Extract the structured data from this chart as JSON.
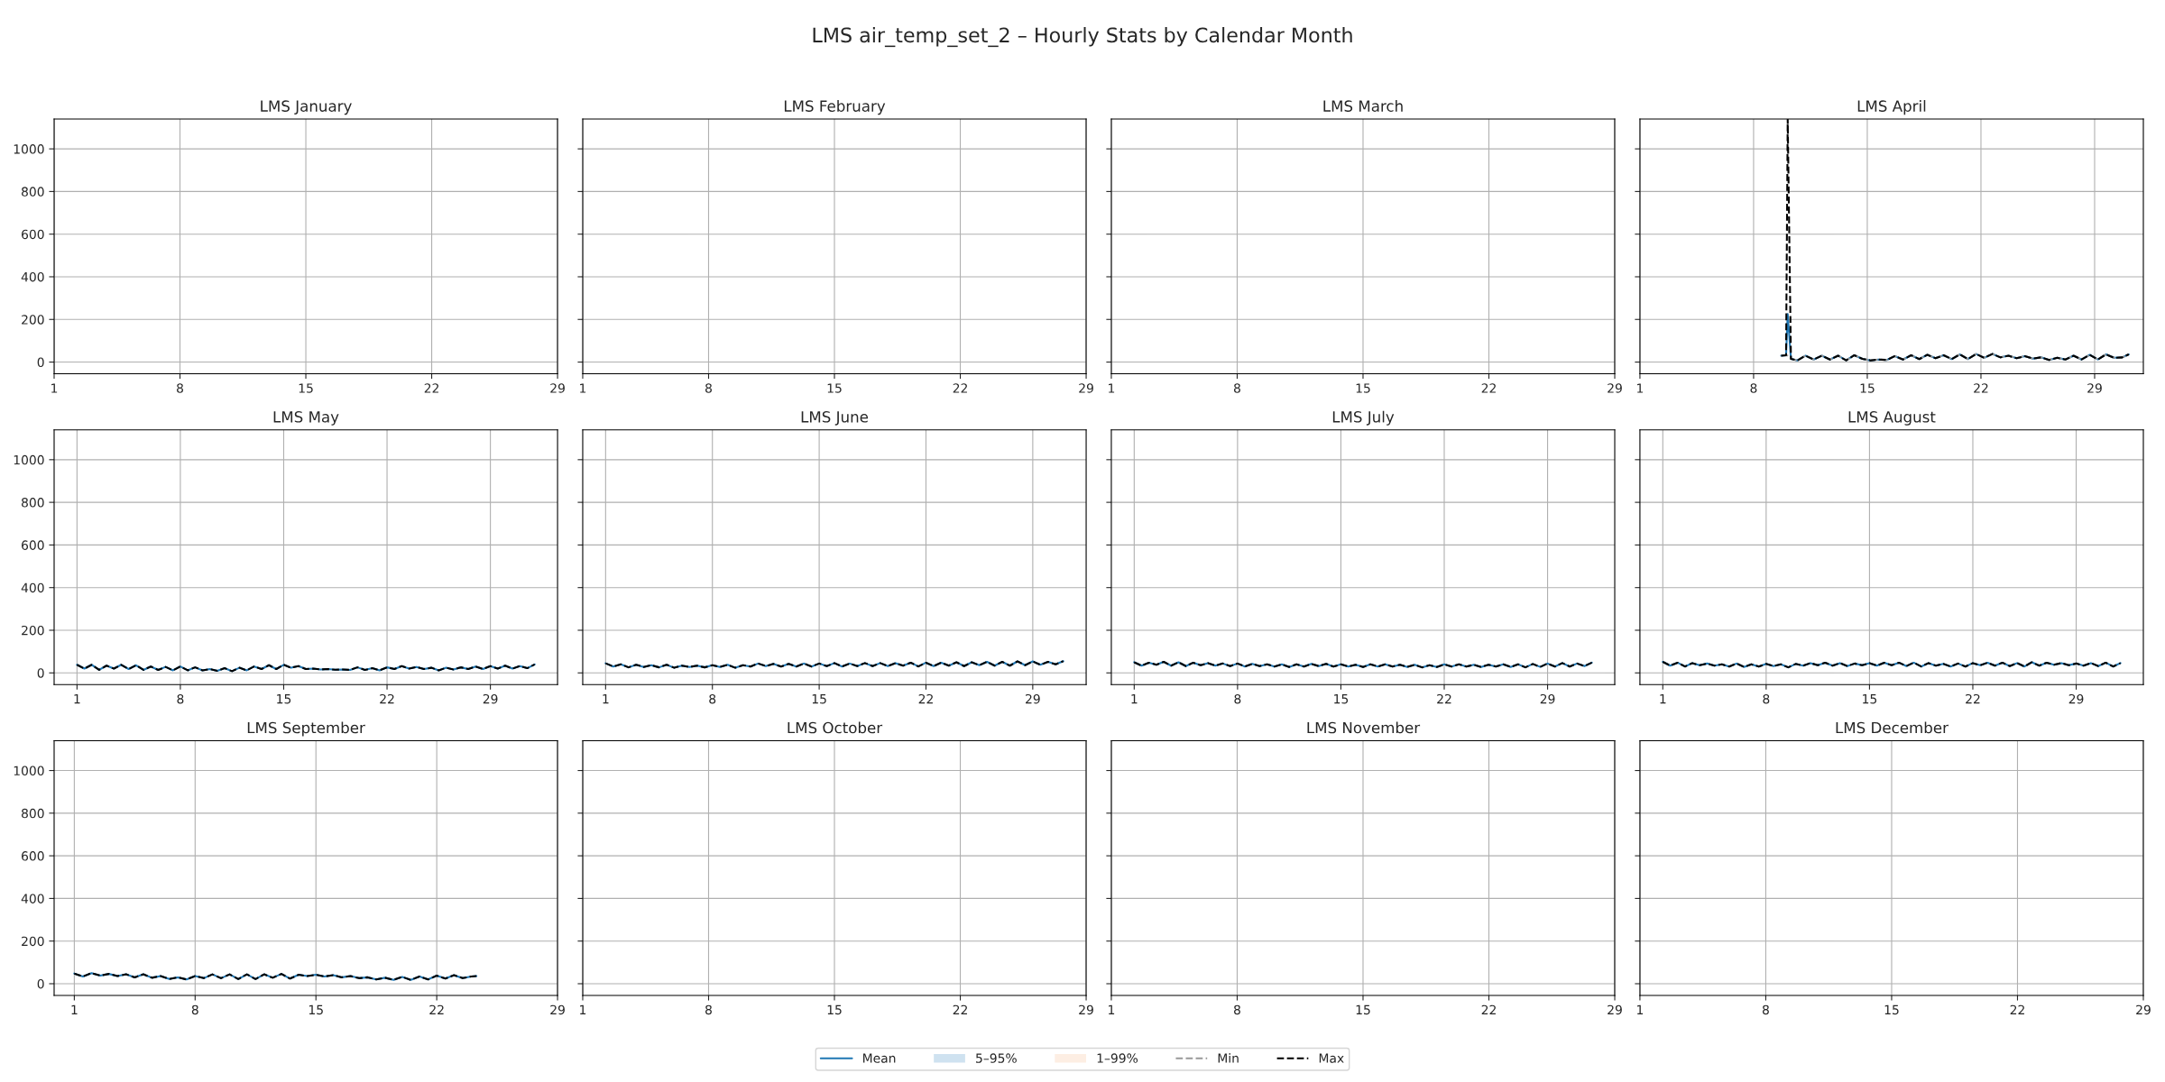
{
  "chart_data": [
    {
      "type": "line",
      "title": "LMS January",
      "annotations": [
        "LMS air_temp_set_2 – Hourly Stats by Calendar Month"
      ],
      "xlim": [
        1,
        29
      ],
      "xticks": [
        1,
        8,
        15,
        22,
        29
      ],
      "ylim": [
        -55,
        1140
      ],
      "yticks": [
        0,
        200,
        400,
        600,
        800,
        1000
      ],
      "grid": true
    },
    {
      "type": "line",
      "title": "LMS February",
      "xlim": [
        1,
        29
      ],
      "xticks": [
        1,
        8,
        15,
        22,
        29
      ],
      "ylim": [
        -55,
        1140
      ],
      "yticks": [
        0,
        200,
        400,
        600,
        800,
        1000
      ],
      "grid": true,
      "tick_labels": "x"
    },
    {
      "type": "line",
      "title": "LMS March",
      "xlim": [
        1,
        29
      ],
      "xticks": [
        1,
        8,
        15,
        22,
        29
      ],
      "ylim": [
        -55,
        1140
      ],
      "yticks": [
        0,
        200,
        400,
        600,
        800,
        1000
      ],
      "grid": true,
      "tick_labels": "x"
    },
    {
      "type": "line",
      "title": "LMS April",
      "xlim": [
        1,
        32
      ],
      "xticks": [
        1,
        8,
        15,
        22,
        29
      ],
      "ylim": [
        -55,
        1140
      ],
      "yticks": [
        0,
        200,
        400,
        600,
        800,
        1000
      ],
      "grid": true,
      "tick_labels": "x",
      "legend": "bottom",
      "x": [
        9.7,
        10.0,
        10.1,
        10.3,
        10.7,
        11.2,
        11.7,
        12.2,
        12.7,
        13.2,
        13.7,
        14.2,
        14.7,
        15.2,
        15.7,
        16.2,
        16.7,
        17.2,
        17.7,
        18.2,
        18.7,
        19.2,
        19.7,
        20.2,
        20.7,
        21.2,
        21.7,
        22.2,
        22.7,
        23.2,
        23.7,
        24.2,
        24.7,
        25.2,
        25.7,
        26.2,
        26.7,
        27.2,
        27.7,
        28.2,
        28.7,
        29.2,
        29.7,
        30.2,
        30.7,
        31.1
      ],
      "series": [
        {
          "name": "Mean",
          "type": "line",
          "color": "#1f77b4",
          "line_style": "solid",
          "values": [
            30,
            32,
            225,
            15,
            8,
            30,
            12,
            30,
            12,
            30,
            8,
            32,
            15,
            8,
            12,
            10,
            28,
            12,
            32,
            14,
            34,
            18,
            32,
            14,
            36,
            14,
            38,
            20,
            38,
            22,
            30,
            18,
            28,
            16,
            22,
            10,
            20,
            12,
            30,
            12,
            34,
            12,
            36,
            20,
            22,
            36
          ]
        },
        {
          "name": "5–95%",
          "type": "area",
          "color": "#cfe2f0",
          "values": [
            null,
            null,
            null,
            null,
            null,
            null,
            null,
            null,
            null,
            null,
            null,
            null,
            null,
            null,
            null,
            null,
            null,
            null,
            null,
            null,
            null,
            null,
            null,
            null,
            null,
            null,
            null,
            null,
            null,
            null,
            null,
            null,
            null,
            null,
            null,
            null,
            null,
            null,
            null,
            null,
            null,
            null,
            null,
            null,
            null,
            null
          ]
        },
        {
          "name": "1–99%",
          "type": "area",
          "color": "#fdeee3",
          "values": [
            null,
            null,
            null,
            null,
            null,
            null,
            null,
            null,
            null,
            null,
            null,
            null,
            null,
            null,
            null,
            null,
            null,
            null,
            null,
            null,
            null,
            null,
            null,
            null,
            null,
            null,
            null,
            null,
            null,
            null,
            null,
            null,
            null,
            null,
            null,
            null,
            null,
            null,
            null,
            null,
            null,
            null,
            null,
            null,
            null,
            null
          ]
        },
        {
          "name": "Min",
          "type": "line",
          "color": "#999999",
          "line_style": "dashed",
          "values": [
            30,
            32,
            30,
            15,
            8,
            30,
            12,
            30,
            12,
            30,
            8,
            32,
            15,
            8,
            12,
            10,
            28,
            12,
            32,
            14,
            34,
            18,
            32,
            14,
            36,
            14,
            38,
            20,
            38,
            22,
            30,
            18,
            28,
            16,
            22,
            10,
            20,
            12,
            30,
            12,
            34,
            12,
            36,
            20,
            22,
            36
          ]
        },
        {
          "name": "Max",
          "type": "line",
          "color": "#000000",
          "line_style": "dashed",
          "values": [
            30,
            32,
            1140,
            15,
            8,
            30,
            12,
            30,
            12,
            30,
            8,
            32,
            15,
            8,
            12,
            10,
            28,
            12,
            32,
            14,
            34,
            18,
            32,
            14,
            36,
            14,
            38,
            20,
            38,
            22,
            30,
            18,
            28,
            16,
            22,
            10,
            20,
            12,
            30,
            12,
            34,
            12,
            36,
            20,
            22,
            36
          ]
        }
      ]
    },
    {
      "type": "line",
      "title": "LMS May",
      "xlim": [
        -0.55,
        33.55
      ],
      "xticks": [
        1,
        8,
        15,
        22,
        29
      ],
      "ylim": [
        -55,
        1140
      ],
      "yticks": [
        0,
        200,
        400,
        600,
        800,
        1000
      ],
      "grid": true,
      "x": [
        1,
        1.5,
        2,
        2.5,
        3,
        3.5,
        4,
        4.5,
        5,
        5.5,
        6,
        6.5,
        7,
        7.5,
        8,
        8.5,
        9,
        9.5,
        10,
        10.5,
        11,
        11.5,
        12,
        12.5,
        13,
        13.5,
        14,
        14.5,
        15,
        15.5,
        16,
        16.5,
        17,
        17.5,
        18,
        18.5,
        19,
        19.5,
        20,
        20.5,
        21,
        21.5,
        22,
        22.5,
        23,
        23.5,
        24,
        24.5,
        25,
        25.5,
        26,
        26.5,
        27,
        27.5,
        28,
        28.5,
        29,
        29.5,
        30,
        30.5,
        31,
        31.5,
        32
      ],
      "series": [
        {
          "type": "line",
          "color": "#1f77b4",
          "line_style": "solid",
          "values": [
            38,
            20,
            38,
            14,
            34,
            20,
            38,
            18,
            36,
            14,
            30,
            14,
            28,
            12,
            30,
            12,
            26,
            12,
            18,
            10,
            22,
            8,
            24,
            12,
            30,
            18,
            36,
            18,
            38,
            24,
            32,
            18,
            20,
            16,
            18,
            15,
            16,
            14,
            26,
            14,
            22,
            12,
            26,
            18,
            32,
            20,
            28,
            18,
            24,
            12,
            24,
            16,
            26,
            18,
            30,
            18,
            32,
            20,
            34,
            20,
            32,
            22,
            40
          ]
        },
        {
          "type": "line",
          "color": "#000000",
          "line_style": "dashed",
          "values": [
            38,
            20,
            38,
            14,
            34,
            20,
            38,
            18,
            36,
            14,
            30,
            14,
            28,
            12,
            30,
            12,
            26,
            12,
            18,
            10,
            22,
            8,
            24,
            12,
            30,
            18,
            36,
            18,
            38,
            24,
            32,
            18,
            20,
            16,
            18,
            15,
            16,
            14,
            26,
            14,
            22,
            12,
            26,
            18,
            32,
            20,
            28,
            18,
            24,
            12,
            24,
            16,
            26,
            18,
            30,
            18,
            32,
            20,
            34,
            20,
            32,
            22,
            40
          ]
        }
      ]
    },
    {
      "type": "line",
      "title": "LMS June",
      "xlim": [
        -0.5,
        32.5
      ],
      "xticks": [
        1,
        8,
        15,
        22,
        29
      ],
      "ylim": [
        -55,
        1140
      ],
      "yticks": [
        0,
        200,
        400,
        600,
        800,
        1000
      ],
      "grid": true,
      "tick_labels": "x",
      "x": [
        1,
        1.5,
        2,
        2.5,
        3,
        3.5,
        4,
        4.5,
        5,
        5.5,
        6,
        6.5,
        7,
        7.5,
        8,
        8.5,
        9,
        9.5,
        10,
        10.5,
        11,
        11.5,
        12,
        12.5,
        13,
        13.5,
        14,
        14.5,
        15,
        15.5,
        16,
        16.5,
        17,
        17.5,
        18,
        18.5,
        19,
        19.5,
        20,
        20.5,
        21,
        21.5,
        22,
        22.5,
        23,
        23.5,
        24,
        24.5,
        25,
        25.5,
        26,
        26.5,
        27,
        27.5,
        28,
        28.5,
        29,
        29.5,
        30,
        30.5,
        31
      ],
      "series": [
        {
          "type": "line",
          "color": "#1f77b4",
          "line_style": "solid",
          "values": [
            45,
            30,
            40,
            26,
            38,
            28,
            36,
            26,
            38,
            24,
            34,
            28,
            34,
            26,
            36,
            28,
            38,
            24,
            36,
            30,
            44,
            32,
            42,
            30,
            42,
            30,
            44,
            30,
            44,
            32,
            46,
            30,
            44,
            32,
            46,
            32,
            46,
            32,
            46,
            34,
            48,
            30,
            48,
            32,
            48,
            34,
            50,
            32,
            50,
            36,
            52,
            34,
            52,
            34,
            54,
            36,
            54,
            38,
            52,
            40,
            55
          ]
        },
        {
          "type": "line",
          "color": "#000000",
          "line_style": "dashed",
          "values": [
            45,
            30,
            40,
            26,
            38,
            28,
            36,
            26,
            38,
            24,
            34,
            28,
            34,
            26,
            36,
            28,
            38,
            24,
            36,
            30,
            44,
            32,
            42,
            30,
            42,
            30,
            44,
            30,
            44,
            32,
            46,
            30,
            44,
            32,
            46,
            32,
            46,
            32,
            46,
            34,
            48,
            30,
            48,
            32,
            48,
            34,
            50,
            32,
            50,
            36,
            52,
            34,
            52,
            34,
            54,
            36,
            54,
            38,
            52,
            40,
            55
          ]
        }
      ]
    },
    {
      "type": "line",
      "title": "LMS July",
      "xlim": [
        -0.55,
        33.55
      ],
      "xticks": [
        1,
        8,
        15,
        22,
        29
      ],
      "ylim": [
        -55,
        1140
      ],
      "yticks": [
        0,
        200,
        400,
        600,
        800,
        1000
      ],
      "grid": true,
      "tick_labels": "x",
      "x": [
        1,
        1.5,
        2,
        2.5,
        3,
        3.5,
        4,
        4.5,
        5,
        5.5,
        6,
        6.5,
        7,
        7.5,
        8,
        8.5,
        9,
        9.5,
        10,
        10.5,
        11,
        11.5,
        12,
        12.5,
        13,
        13.5,
        14,
        14.5,
        15,
        15.5,
        16,
        16.5,
        17,
        17.5,
        18,
        18.5,
        19,
        19.5,
        20,
        20.5,
        21,
        21.5,
        22,
        22.5,
        23,
        23.5,
        24,
        24.5,
        25,
        25.5,
        26,
        26.5,
        27,
        27.5,
        28,
        28.5,
        29,
        29.5,
        30,
        30.5,
        31,
        31.5,
        32
      ],
      "series": [
        {
          "type": "line",
          "color": "#1f77b4",
          "line_style": "solid",
          "values": [
            50,
            34,
            48,
            38,
            52,
            34,
            50,
            32,
            48,
            36,
            46,
            34,
            44,
            32,
            44,
            30,
            42,
            32,
            40,
            30,
            40,
            28,
            40,
            30,
            42,
            32,
            42,
            30,
            40,
            30,
            38,
            28,
            40,
            30,
            40,
            30,
            38,
            28,
            38,
            26,
            36,
            28,
            40,
            30,
            40,
            30,
            38,
            28,
            38,
            30,
            40,
            28,
            40,
            26,
            42,
            28,
            44,
            30,
            46,
            30,
            44,
            32,
            48
          ]
        },
        {
          "type": "line",
          "color": "#000000",
          "line_style": "dashed",
          "values": [
            50,
            34,
            48,
            38,
            52,
            34,
            50,
            32,
            48,
            36,
            46,
            34,
            44,
            32,
            44,
            30,
            42,
            32,
            40,
            30,
            40,
            28,
            40,
            30,
            42,
            32,
            42,
            30,
            40,
            30,
            38,
            28,
            40,
            30,
            40,
            30,
            38,
            28,
            38,
            26,
            36,
            28,
            40,
            30,
            40,
            30,
            38,
            28,
            38,
            30,
            40,
            28,
            40,
            26,
            42,
            28,
            44,
            30,
            46,
            30,
            44,
            32,
            48
          ]
        }
      ]
    },
    {
      "type": "line",
      "title": "LMS August",
      "xlim": [
        -0.55,
        33.55
      ],
      "xticks": [
        1,
        8,
        15,
        22,
        29
      ],
      "ylim": [
        -55,
        1140
      ],
      "yticks": [
        0,
        200,
        400,
        600,
        800,
        1000
      ],
      "grid": true,
      "tick_labels": "x",
      "x": [
        1,
        1.5,
        2,
        2.5,
        3,
        3.5,
        4,
        4.5,
        5,
        5.5,
        6,
        6.5,
        7,
        7.5,
        8,
        8.5,
        9,
        9.5,
        10,
        10.5,
        11,
        11.5,
        12,
        12.5,
        13,
        13.5,
        14,
        14.5,
        15,
        15.5,
        16,
        16.5,
        17,
        17.5,
        18,
        18.5,
        19,
        19.5,
        20,
        20.5,
        21,
        21.5,
        22,
        22.5,
        23,
        23.5,
        24,
        24.5,
        25,
        25.5,
        26,
        26.5,
        27,
        27.5,
        28,
        28.5,
        29,
        29.5,
        30,
        30.5,
        31,
        31.5,
        32
      ],
      "series": [
        {
          "type": "line",
          "color": "#1f77b4",
          "line_style": "solid",
          "values": [
            52,
            34,
            48,
            30,
            46,
            36,
            44,
            34,
            40,
            30,
            44,
            28,
            40,
            30,
            42,
            32,
            40,
            26,
            42,
            34,
            46,
            36,
            48,
            34,
            46,
            32,
            44,
            36,
            46,
            34,
            48,
            36,
            48,
            32,
            48,
            30,
            46,
            34,
            42,
            30,
            44,
            30,
            46,
            36,
            48,
            34,
            48,
            32,
            46,
            30,
            50,
            34,
            48,
            38,
            46,
            36,
            44,
            34,
            46,
            32,
            48,
            30,
            46
          ]
        },
        {
          "type": "line",
          "color": "#000000",
          "line_style": "dashed",
          "values": [
            52,
            34,
            48,
            30,
            46,
            36,
            44,
            34,
            40,
            30,
            44,
            28,
            40,
            30,
            42,
            32,
            40,
            26,
            42,
            34,
            46,
            36,
            48,
            34,
            46,
            32,
            44,
            36,
            46,
            34,
            48,
            36,
            48,
            32,
            48,
            30,
            46,
            34,
            42,
            30,
            44,
            30,
            46,
            36,
            48,
            34,
            48,
            32,
            46,
            30,
            50,
            34,
            48,
            38,
            46,
            36,
            44,
            34,
            46,
            32,
            48,
            30,
            46
          ]
        }
      ]
    },
    {
      "type": "line",
      "title": "LMS September",
      "xlim": [
        -0.17,
        29
      ],
      "xticks": [
        1,
        8,
        15,
        22,
        29
      ],
      "ylim": [
        -55,
        1140
      ],
      "yticks": [
        0,
        200,
        400,
        600,
        800,
        1000
      ],
      "grid": true,
      "x": [
        1,
        1.5,
        2,
        2.5,
        3,
        3.5,
        4,
        4.5,
        5,
        5.5,
        6,
        6.5,
        7,
        7.5,
        8,
        8.5,
        9,
        9.5,
        10,
        10.5,
        11,
        11.5,
        12,
        12.5,
        13,
        13.5,
        14,
        14.5,
        15,
        15.5,
        16,
        16.5,
        17,
        17.5,
        18,
        18.5,
        19,
        19.5,
        20,
        20.5,
        21,
        21.5,
        22,
        22.5,
        23,
        23.5,
        24,
        24.3
      ],
      "series": [
        {
          "type": "line",
          "color": "#1f77b4",
          "line_style": "solid",
          "values": [
            48,
            34,
            50,
            38,
            46,
            36,
            44,
            30,
            44,
            28,
            36,
            22,
            30,
            20,
            36,
            26,
            44,
            26,
            44,
            22,
            44,
            22,
            44,
            28,
            46,
            24,
            42,
            36,
            42,
            34,
            40,
            30,
            36,
            26,
            30,
            20,
            28,
            18,
            32,
            18,
            34,
            20,
            38,
            24,
            40,
            26,
            34,
            36
          ]
        },
        {
          "type": "line",
          "color": "#000000",
          "line_style": "dashed",
          "values": [
            48,
            34,
            50,
            38,
            46,
            36,
            44,
            30,
            44,
            28,
            36,
            22,
            30,
            20,
            36,
            26,
            44,
            26,
            44,
            22,
            44,
            22,
            44,
            28,
            46,
            24,
            42,
            36,
            42,
            34,
            40,
            30,
            36,
            26,
            30,
            20,
            28,
            18,
            32,
            18,
            34,
            20,
            38,
            24,
            40,
            26,
            34,
            36
          ]
        }
      ]
    },
    {
      "type": "line",
      "title": "LMS October",
      "xlim": [
        1,
        29
      ],
      "xticks": [
        1,
        8,
        15,
        22,
        29
      ],
      "ylim": [
        -55,
        1140
      ],
      "yticks": [
        0,
        200,
        400,
        600,
        800,
        1000
      ],
      "grid": true,
      "tick_labels": "x"
    },
    {
      "type": "line",
      "title": "LMS November",
      "xlim": [
        1,
        29
      ],
      "xticks": [
        1,
        8,
        15,
        22,
        29
      ],
      "ylim": [
        -55,
        1140
      ],
      "yticks": [
        0,
        200,
        400,
        600,
        800,
        1000
      ],
      "grid": true,
      "tick_labels": "x"
    },
    {
      "type": "line",
      "title": "LMS December",
      "xlim": [
        1,
        29
      ],
      "xticks": [
        1,
        8,
        15,
        22,
        29
      ],
      "ylim": [
        -55,
        1140
      ],
      "yticks": [
        0,
        200,
        400,
        600,
        800,
        1000
      ],
      "grid": true,
      "tick_labels": "x"
    }
  ]
}
